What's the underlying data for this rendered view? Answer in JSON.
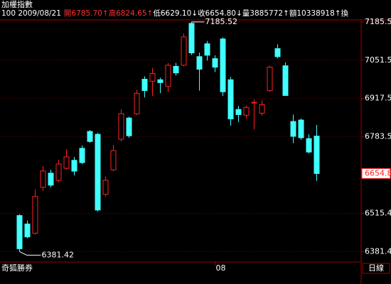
{
  "chart_data": {
    "type": "candlestick",
    "title": "加權指數",
    "info": [
      "100 2009/08/21",
      "開6785.70↑",
      "高6824.65↑",
      "低6629.10↓",
      "收6654.80↓",
      "量3885772↑",
      "額10338918↑",
      "換"
    ],
    "info_colors": [
      "#ffffff",
      "#ff3030",
      "#ff3030",
      "#ffffff",
      "#ffffff",
      "#ffffff",
      "#ffffff",
      "#ffffff"
    ],
    "footer_left": "奇狐勝券",
    "footer_right": "日線",
    "categories": [
      null,
      null,
      null,
      null,
      null,
      null,
      null,
      null,
      null,
      null,
      null,
      null,
      null,
      null,
      null,
      null,
      null,
      null,
      null,
      null,
      null,
      null,
      null,
      null,
      null,
      "08",
      null,
      null,
      null,
      null,
      null,
      null,
      null,
      null,
      null,
      null,
      null,
      null,
      null
    ],
    "open": [
      6507.6,
      6478,
      6445.8,
      6606.6,
      6656,
      6631,
      6673,
      6701,
      6743,
      6802,
      6792,
      6582,
      6668,
      6775,
      6849,
      6864,
      6985,
      6978,
      6983,
      6960,
      7030,
      7034,
      7180.5,
      7064,
      7109,
      7057,
      7126,
      6983,
      6879,
      6859,
      6903,
      6866,
      6945,
      7092,
      7032,
      6837,
      6842,
      6777,
      6785.7
    ],
    "high": [
      6512.6,
      6490,
      6599,
      6680.8,
      6668,
      6703,
      6740,
      6713,
      6753,
      6807,
      6797,
      6644,
      6755,
      6879,
      6854,
      6948,
      6995,
      7025,
      6990,
      7042,
      7042,
      7145,
      7185.52,
      7078,
      7119,
      7069,
      7131,
      6993,
      6891,
      6893,
      6915,
      6911,
      7032,
      7107,
      7044,
      6861,
      6847,
      6792,
      6824.65
    ],
    "low": [
      6381.42,
      6428,
      6441,
      6594,
      6606,
      6624,
      6668,
      6648,
      6688,
      6762,
      6522,
      6574,
      6663,
      6767,
      6780,
      6859,
      6921,
      6926,
      6936,
      6940,
      6998,
      7030,
      7070,
      6945,
      7050,
      7010,
      6926,
      6822,
      6835,
      6847,
      6809,
      6857,
      6940,
      7058,
      6926,
      6761,
      6773,
      6725,
      6629.1
    ],
    "close": [
      6391.4,
      6433,
      6574.4,
      6663.5,
      6614,
      6688,
      6713,
      6663,
      6693,
      6767,
      6527,
      6631,
      6735,
      6864,
      6787,
      6936,
      6945,
      7005,
      6973,
      7034,
      7007,
      7133,
      7077,
      7020,
      7069,
      7027,
      6941,
      6846,
      6861,
      6886,
      6904,
      6896,
      7027,
      7064,
      6928,
      6785,
      6780,
      6730,
      6654.8
    ],
    "up_color": "#ff2020",
    "down_color": "#40ffff",
    "high_label": 7185.52,
    "low_label": 6381.42,
    "last_price": 6654.8,
    "ylim": [
      6345,
      7225
    ],
    "yticks": [
      7185.5,
      7051.5,
      6917.5,
      6783.5,
      6515.4,
      6381.4
    ],
    "grid": true
  }
}
